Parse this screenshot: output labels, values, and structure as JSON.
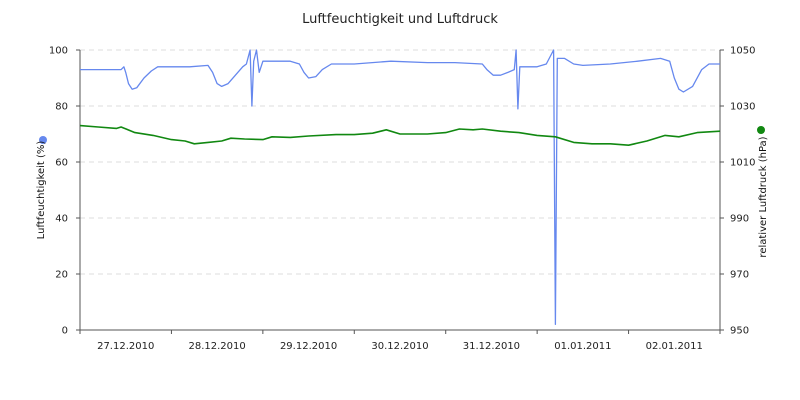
{
  "chart_data": {
    "type": "line",
    "title": "Luftfeuchtigkeit und Luftdruck",
    "x_ticks": [
      "27.12.2010",
      "28.12.2010",
      "29.12.2010",
      "30.12.2010",
      "31.12.2010",
      "01.01.2011",
      "02.01.2011"
    ],
    "x_range_days": [
      0,
      7
    ],
    "y_left": {
      "label": "Luftfeuchtigkeit (%)",
      "range": [
        0,
        100
      ],
      "ticks": [
        "0",
        "20",
        "40",
        "60",
        "80",
        "100"
      ],
      "color": "#6688ee"
    },
    "y_right": {
      "label": "relativer Luftdruck (hPa)",
      "range": [
        950,
        1050
      ],
      "ticks": [
        "950",
        "970",
        "990",
        "1010",
        "1030",
        "1050"
      ],
      "color": "#118811"
    },
    "grid": "horizontal dashed",
    "series": [
      {
        "axis": "left",
        "color": "#6688ee",
        "points": [
          [
            0.0,
            93
          ],
          [
            0.45,
            93
          ],
          [
            0.48,
            94
          ],
          [
            0.5,
            92
          ],
          [
            0.53,
            88
          ],
          [
            0.57,
            86
          ],
          [
            0.62,
            86.5
          ],
          [
            0.7,
            90
          ],
          [
            0.78,
            92.5
          ],
          [
            0.85,
            94
          ],
          [
            1.0,
            94
          ],
          [
            1.2,
            94
          ],
          [
            1.4,
            94.5
          ],
          [
            1.45,
            92
          ],
          [
            1.5,
            88
          ],
          [
            1.55,
            87
          ],
          [
            1.62,
            88
          ],
          [
            1.7,
            91
          ],
          [
            1.78,
            94
          ],
          [
            1.82,
            95
          ],
          [
            1.86,
            100
          ],
          [
            1.88,
            80
          ],
          [
            1.9,
            96
          ],
          [
            1.93,
            100
          ],
          [
            1.96,
            92
          ],
          [
            2.0,
            96
          ],
          [
            2.3,
            96
          ],
          [
            2.4,
            95
          ],
          [
            2.45,
            92
          ],
          [
            2.5,
            90
          ],
          [
            2.58,
            90.5
          ],
          [
            2.65,
            93
          ],
          [
            2.75,
            95
          ],
          [
            3.0,
            95
          ],
          [
            3.4,
            96
          ],
          [
            3.8,
            95.5
          ],
          [
            4.1,
            95.5
          ],
          [
            4.4,
            95
          ],
          [
            4.45,
            93
          ],
          [
            4.52,
            91
          ],
          [
            4.6,
            91
          ],
          [
            4.68,
            92
          ],
          [
            4.75,
            93
          ],
          [
            4.77,
            100
          ],
          [
            4.79,
            79
          ],
          [
            4.81,
            94
          ],
          [
            4.9,
            94
          ],
          [
            5.0,
            94
          ],
          [
            5.1,
            95
          ],
          [
            5.18,
            100
          ],
          [
            5.2,
            2
          ],
          [
            5.22,
            97
          ],
          [
            5.3,
            97
          ],
          [
            5.4,
            95
          ],
          [
            5.5,
            94.5
          ],
          [
            5.8,
            95
          ],
          [
            6.1,
            96
          ],
          [
            6.35,
            97
          ],
          [
            6.45,
            96
          ],
          [
            6.5,
            90
          ],
          [
            6.55,
            86
          ],
          [
            6.6,
            85
          ],
          [
            6.7,
            87
          ],
          [
            6.8,
            93
          ],
          [
            6.88,
            95
          ],
          [
            7.0,
            95
          ]
        ]
      },
      {
        "axis": "right",
        "color": "#118811",
        "points": [
          [
            0.0,
            1023.0
          ],
          [
            0.2,
            1022.5
          ],
          [
            0.4,
            1022.0
          ],
          [
            0.45,
            1022.5
          ],
          [
            0.6,
            1020.5
          ],
          [
            0.8,
            1019.5
          ],
          [
            1.0,
            1018.0
          ],
          [
            1.15,
            1017.5
          ],
          [
            1.25,
            1016.5
          ],
          [
            1.4,
            1017.0
          ],
          [
            1.55,
            1017.5
          ],
          [
            1.65,
            1018.5
          ],
          [
            1.8,
            1018.2
          ],
          [
            2.0,
            1018.0
          ],
          [
            2.1,
            1019.0
          ],
          [
            2.3,
            1018.8
          ],
          [
            2.5,
            1019.3
          ],
          [
            2.8,
            1019.8
          ],
          [
            3.0,
            1019.8
          ],
          [
            3.2,
            1020.3
          ],
          [
            3.35,
            1021.5
          ],
          [
            3.5,
            1020.0
          ],
          [
            3.8,
            1020.0
          ],
          [
            4.0,
            1020.5
          ],
          [
            4.15,
            1021.8
          ],
          [
            4.3,
            1021.5
          ],
          [
            4.4,
            1021.8
          ],
          [
            4.6,
            1021.0
          ],
          [
            4.8,
            1020.5
          ],
          [
            5.0,
            1019.5
          ],
          [
            5.2,
            1019.0
          ],
          [
            5.4,
            1017.0
          ],
          [
            5.6,
            1016.5
          ],
          [
            5.8,
            1016.5
          ],
          [
            6.0,
            1016.0
          ],
          [
            6.2,
            1017.5
          ],
          [
            6.4,
            1019.5
          ],
          [
            6.55,
            1019.0
          ],
          [
            6.75,
            1020.5
          ],
          [
            7.0,
            1021.0
          ]
        ]
      }
    ]
  }
}
